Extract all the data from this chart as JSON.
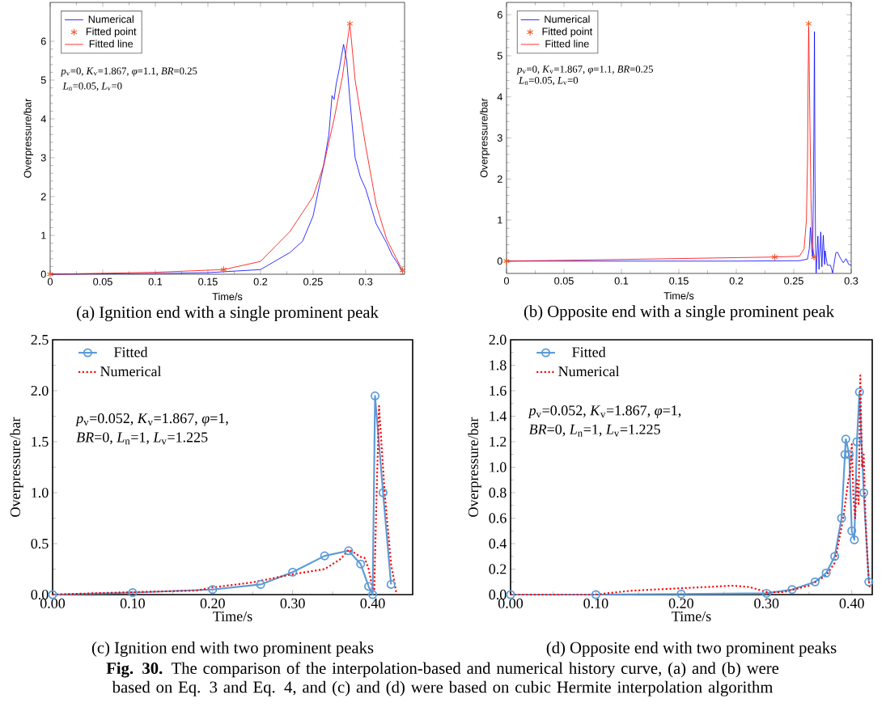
{
  "chart_data": [
    {
      "type": "line",
      "title": "(a) Ignition end with a single prominent peak",
      "xlabel": "Time/s",
      "ylabel": "Overpressure/bar",
      "xlim": [
        0,
        0.337
      ],
      "ylim": [
        0,
        7
      ],
      "xticks": [
        0,
        0.05,
        0.1,
        0.15,
        0.2,
        0.25,
        0.3
      ],
      "yticks": [
        0,
        1,
        2,
        3,
        4,
        5,
        6
      ],
      "legend": "top left",
      "annotations": [
        "*p*$_{v}$=0, *K*$_{v}$=1.867, *φ*=1.1, *BR*=0.25",
        "*L*$_{n}$=0.05, *L*$_{v}$=0"
      ],
      "series": [
        {
          "name": "Numerical",
          "color": "#0000ff",
          "x": [
            0,
            0.1,
            0.15,
            0.2,
            0.228,
            0.24,
            0.25,
            0.26,
            0.265,
            0.268,
            0.27,
            0.272,
            0.275,
            0.279,
            0.282,
            0.285,
            0.29,
            0.295,
            0.3,
            0.31,
            0.32,
            0.325,
            0.33,
            0.335
          ],
          "values": [
            0,
            0.02,
            0.04,
            0.12,
            0.56,
            0.85,
            1.5,
            2.8,
            3.6,
            4.6,
            4.5,
            4.9,
            5.3,
            5.92,
            5.5,
            4.5,
            3.0,
            2.5,
            2.2,
            1.3,
            0.8,
            0.5,
            0.3,
            0.05
          ]
        },
        {
          "name": "Fitted point",
          "type": "scatter",
          "marker": "cross",
          "color": "#f05a28",
          "x": [
            0,
            0.165,
            0.285,
            0.335
          ],
          "values": [
            0,
            0.12,
            6.45,
            0.1
          ]
        },
        {
          "name": "Fitted line",
          "color": "#ff0000",
          "x": [
            0,
            0.1,
            0.165,
            0.2,
            0.228,
            0.25,
            0.26,
            0.27,
            0.278,
            0.285,
            0.29,
            0.3,
            0.31,
            0.32,
            0.335
          ],
          "values": [
            0,
            0.05,
            0.12,
            0.33,
            1.1,
            2.0,
            2.8,
            4.0,
            5.1,
            6.45,
            5.0,
            3.3,
            1.8,
            0.9,
            0.1
          ]
        }
      ]
    },
    {
      "type": "line",
      "title": "(b) Opposite end with a single prominent peak",
      "xlabel": "Time/s",
      "ylabel": "Overpressure/bar",
      "xlim": [
        0,
        0.3
      ],
      "ylim": [
        -0.3,
        6.3
      ],
      "xticks": [
        0,
        0.05,
        0.1,
        0.15,
        0.2,
        0.25,
        0.3
      ],
      "yticks": [
        0,
        1,
        2,
        3,
        4,
        5,
        6
      ],
      "legend": "top left",
      "annotations": [
        "*p*$_{v}$=0, *K*$_{v}$=1.867, *φ*=1.1, *BR*=0.25",
        "*L*$_{n}$=0.05, *L*$_{v}$=0"
      ],
      "series": [
        {
          "name": "Numerical",
          "color": "#0000ff",
          "x": [
            0,
            0.1,
            0.2,
            0.255,
            0.262,
            0.2635,
            0.2645,
            0.2655,
            0.2665,
            0.2675,
            0.268,
            0.2685,
            0.269,
            0.2695,
            0.271,
            0.272,
            0.2735,
            0.2745,
            0.2757,
            0.2769,
            0.2773,
            0.2792,
            0.282,
            0.2838,
            0.2866,
            0.288,
            0.2908,
            0.2931,
            0.2955,
            0.2978,
            0.3
          ],
          "values": [
            0,
            0,
            0,
            0.01,
            0.05,
            0.3,
            0.82,
            0.3,
            0.1,
            3.0,
            5.59,
            2.0,
            0.3,
            -0.29,
            0.61,
            -0.2,
            0.71,
            -0.14,
            0.63,
            -0.08,
            0.25,
            -0.1,
            -0.1,
            -0.29,
            0.2,
            0.22,
            0.06,
            -0.04,
            0.06,
            -0.08,
            -0.1
          ]
        },
        {
          "name": "Fitted point",
          "type": "scatter",
          "marker": "cross",
          "color": "#f05a28",
          "x": [
            0,
            0.2335,
            0.263,
            0.2676
          ],
          "values": [
            0,
            0.1,
            5.78,
            0.1
          ]
        },
        {
          "name": "Fitted line",
          "color": "#ff0000",
          "x": [
            0,
            0.1,
            0.2335,
            0.255,
            0.259,
            0.261,
            0.262,
            0.2625,
            0.263,
            0.264,
            0.265,
            0.266,
            0.2676
          ],
          "values": [
            0,
            0.04,
            0.1,
            0.12,
            0.3,
            1.0,
            2.5,
            4.5,
            5.78,
            3.5,
            1.5,
            0.5,
            0.1
          ]
        }
      ]
    },
    {
      "type": "line",
      "title": "(c) Ignition end with two prominent peaks",
      "xlabel": "Time/s",
      "ylabel": "Overpressure/bar",
      "xlim": [
        0,
        0.45
      ],
      "ylim": [
        0,
        2.5
      ],
      "xticks": [
        {
          "value": 0,
          "label": "0.00"
        },
        {
          "value": 0.1,
          "label": "0.10"
        },
        {
          "value": 0.2,
          "label": "0.20"
        },
        {
          "value": 0.3,
          "label": "0.30"
        },
        {
          "value": 0.4,
          "label": "0.40"
        }
      ],
      "yticks": [
        {
          "value": 0,
          "label": "0.0"
        },
        {
          "value": 0.5,
          "label": "0.5"
        },
        {
          "value": 1.0,
          "label": "1.0"
        },
        {
          "value": 1.5,
          "label": "1.5"
        },
        {
          "value": 2.0,
          "label": "2.0"
        },
        {
          "value": 2.5,
          "label": "2.5"
        }
      ],
      "legend": "top left",
      "annotations": [
        "*p*$_{v}$=0.052, *K*$_{v}$=1.867, *φ*=1,",
        "*BR*=0,  *L*$_{n}$=1, *L*$_{v}$=1.225"
      ],
      "series": [
        {
          "name": "Fitted",
          "marker": "circle",
          "line_style": "solid",
          "color": "#5b9bd5",
          "x": [
            0,
            0.1,
            0.2,
            0.26,
            0.3,
            0.34,
            0.37,
            0.385,
            0.395,
            0.4,
            0.403,
            0.413,
            0.423
          ],
          "values": [
            0,
            0.02,
            0.05,
            0.1,
            0.22,
            0.38,
            0.43,
            0.3,
            0.08,
            0,
            1.95,
            1.0,
            0.1
          ]
        },
        {
          "name": "Numerical",
          "marker": "none",
          "line_style": "dotted",
          "color": "#ff0000",
          "x": [
            0,
            0.08,
            0.18,
            0.2,
            0.25,
            0.3,
            0.34,
            0.36,
            0.37,
            0.375,
            0.385,
            0.39,
            0.395,
            0.4,
            0.402,
            0.405,
            0.408,
            0.415,
            0.423,
            0.43
          ],
          "values": [
            0,
            0.02,
            0.04,
            0.07,
            0.12,
            0.2,
            0.25,
            0.35,
            0.44,
            0.42,
            0.37,
            0.36,
            0.25,
            0.05,
            0.05,
            1.0,
            1.85,
            1.0,
            0.3,
            0
          ]
        }
      ]
    },
    {
      "type": "line",
      "title": "(d) Opposite end with two prominent peaks",
      "xlabel": "Time/s",
      "ylabel": "Overpressure/bar",
      "xlim": [
        0,
        0.424
      ],
      "ylim": [
        0,
        2.0
      ],
      "xticks": [
        {
          "value": 0,
          "label": "0.00"
        },
        {
          "value": 0.1,
          "label": "0.10"
        },
        {
          "value": 0.2,
          "label": "0.20"
        },
        {
          "value": 0.3,
          "label": "0.30"
        },
        {
          "value": 0.4,
          "label": "0.40"
        }
      ],
      "yticks": [
        {
          "value": 0,
          "label": "0.0"
        },
        {
          "value": 0.2,
          "label": "0.2"
        },
        {
          "value": 0.4,
          "label": "0.4"
        },
        {
          "value": 0.6,
          "label": "0.6"
        },
        {
          "value": 0.8,
          "label": "0.8"
        },
        {
          "value": 1.0,
          "label": "1.0"
        },
        {
          "value": 1.2,
          "label": "1.2"
        },
        {
          "value": 1.4,
          "label": "1.4"
        },
        {
          "value": 1.6,
          "label": "1.6"
        },
        {
          "value": 1.8,
          "label": "1.8"
        },
        {
          "value": 2.0,
          "label": "2.0"
        }
      ],
      "legend": "top left",
      "annotations": [
        "*p*$_{v}$=0.052, *K*$_{v}$=1.867, *φ*=1,",
        "*BR*=0,  *L*$_{n}$=1, *L*$_{v}$=1.225",
        "**Fig. 30.** The comparison of the interpolation-based and numerical history curve, (a) and (b) were based on Eq. 3 and Eq. 4, and (c) and (d) were based on cubic Hermite interpolation algorithm"
      ],
      "series": [
        {
          "name": "Fitted",
          "marker": "circle",
          "line_style": "solid",
          "color": "#5b9bd5",
          "x": [
            0,
            0.1,
            0.2,
            0.3,
            0.33,
            0.357,
            0.37,
            0.38,
            0.388,
            0.392,
            0.393,
            0.397,
            0.4,
            0.403,
            0.406,
            0.409,
            0.414,
            0.42
          ],
          "values": [
            0,
            0,
            0.005,
            0.01,
            0.04,
            0.1,
            0.17,
            0.3,
            0.6,
            1.1,
            1.22,
            1.1,
            0.5,
            0.43,
            1.2,
            1.59,
            0.8,
            0.1
          ]
        },
        {
          "name": "Numerical",
          "marker": "none",
          "line_style": "dotted",
          "color": "#ff0000",
          "x": [
            0,
            0.1,
            0.14,
            0.2,
            0.26,
            0.28,
            0.3,
            0.32,
            0.35,
            0.37,
            0.38,
            0.39,
            0.396,
            0.398,
            0.4,
            0.402,
            0.404,
            0.406,
            0.408,
            0.41,
            0.412,
            0.414,
            0.416,
            0.419,
            0.421
          ],
          "values": [
            0,
            0,
            0.03,
            0.05,
            0.07,
            0.06,
            0.02,
            0.02,
            0.07,
            0.15,
            0.25,
            0.6,
            0.9,
            0.95,
            1.18,
            0.75,
            0.6,
            0.9,
            0.7,
            1.72,
            1.0,
            1.1,
            0.6,
            0.2,
            0.05
          ]
        }
      ]
    }
  ]
}
